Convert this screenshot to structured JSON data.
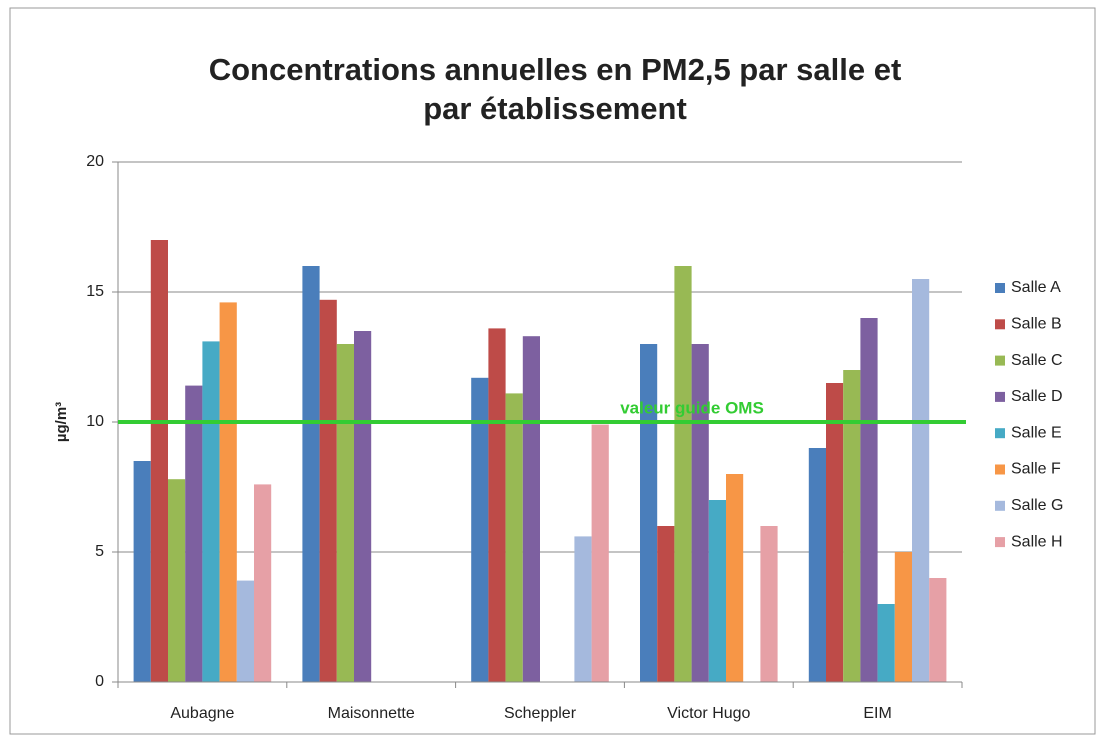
{
  "chart_data": {
    "type": "bar",
    "title": "Concentrations annuelles en PM2,5 par salle et",
    "title_line2": "par établissement",
    "ylabel": "µg/m³",
    "categories": [
      "Aubagne",
      "Maisonnette",
      "Scheppler",
      "Victor Hugo",
      "EIM"
    ],
    "series": [
      {
        "name": "Salle A",
        "color": "#4a7ebb",
        "values": [
          8.5,
          16,
          11.7,
          13,
          9
        ]
      },
      {
        "name": "Salle B",
        "color": "#be4b48",
        "values": [
          17,
          14.7,
          13.6,
          6,
          11.5
        ]
      },
      {
        "name": "Salle C",
        "color": "#98b954",
        "values": [
          7.8,
          13,
          11.1,
          16,
          12
        ]
      },
      {
        "name": "Salle D",
        "color": "#7d60a0",
        "values": [
          11.4,
          13.5,
          13.3,
          13,
          14
        ]
      },
      {
        "name": "Salle E",
        "color": "#46aac5",
        "values": [
          13.1,
          null,
          null,
          7,
          3
        ]
      },
      {
        "name": "Salle F",
        "color": "#f79646",
        "values": [
          14.6,
          null,
          null,
          8,
          5
        ]
      },
      {
        "name": "Salle G",
        "color": "#a5b9dd",
        "values": [
          3.9,
          null,
          5.6,
          null,
          15.5
        ]
      },
      {
        "name": "Salle H",
        "color": "#e6a0a6",
        "values": [
          7.6,
          null,
          9.9,
          6,
          4
        ]
      }
    ],
    "ylim": [
      0,
      20
    ],
    "yticks": [
      0,
      5,
      10,
      15,
      20
    ],
    "grid": true,
    "legend": "right",
    "reference_line": {
      "value": 10,
      "label": "valeur guide OMS",
      "color": "#33cc33"
    }
  }
}
